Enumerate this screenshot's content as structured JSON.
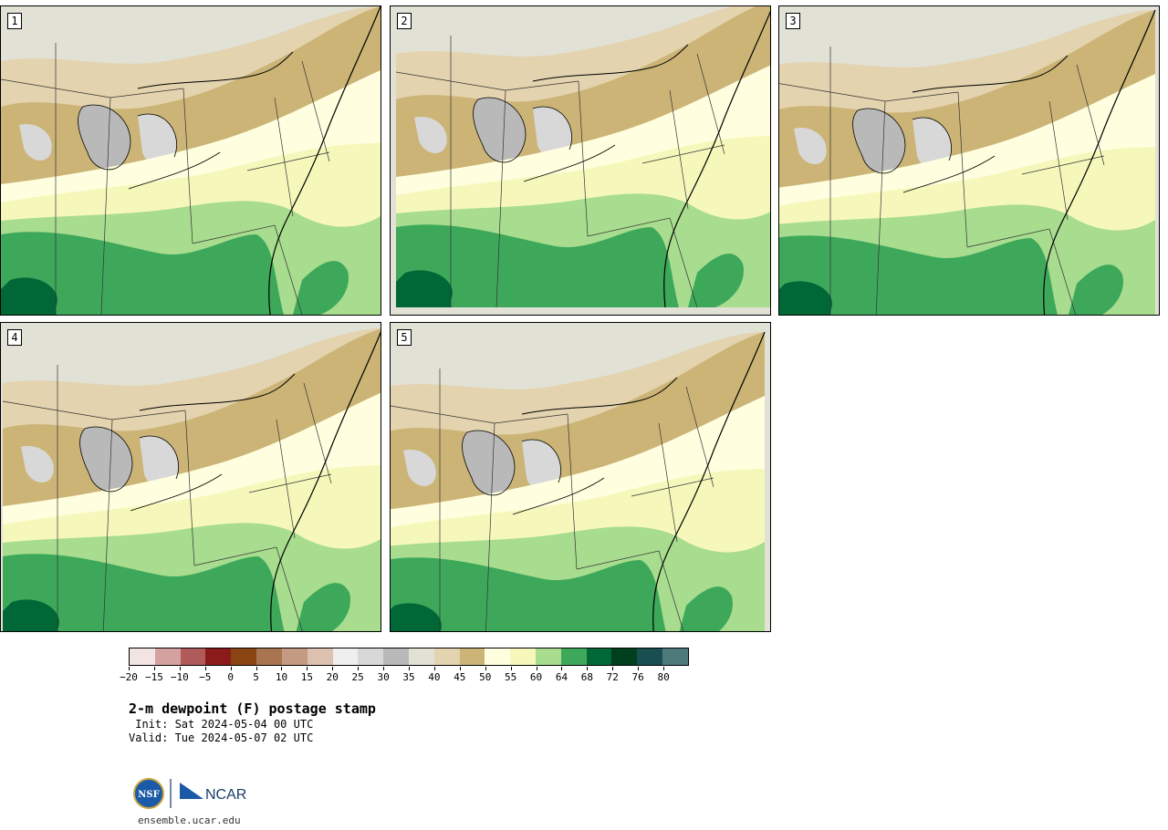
{
  "panels": [
    {
      "label": "1"
    },
    {
      "label": "2"
    },
    {
      "label": "3"
    },
    {
      "label": "4"
    },
    {
      "label": "5"
    }
  ],
  "colorbar": {
    "colors": [
      "#f2e4e2",
      "#d4a0a0",
      "#b05a5a",
      "#8b1a1a",
      "#8b4513",
      "#a87550",
      "#c49a80",
      "#dcc0b0",
      "#efefef",
      "#d8d8d8",
      "#b9b9b9",
      "#e2e1d6",
      "#e3d3ae",
      "#cbb476",
      "#ffffe0",
      "#f6f8bb",
      "#a8dc8e",
      "#3ea85a",
      "#006837",
      "#00401f",
      "#1a4f52",
      "#4f7a7c"
    ],
    "tick_labels": [
      "−20",
      "−15",
      "−10",
      "−5",
      "0",
      "5",
      "10",
      "15",
      "20",
      "25",
      "30",
      "35",
      "40",
      "45",
      "50",
      "55",
      "60",
      "64",
      "68",
      "72",
      "76",
      "80"
    ]
  },
  "title": "2-m dewpoint (F) postage stamp",
  "init": " Init: Sat 2024-05-04 00 UTC",
  "valid": "Valid: Tue 2024-05-07 02 UTC",
  "logo": {
    "nsf": "NSF",
    "ncar": "NCAR"
  },
  "site": "ensemble.ucar.edu"
}
